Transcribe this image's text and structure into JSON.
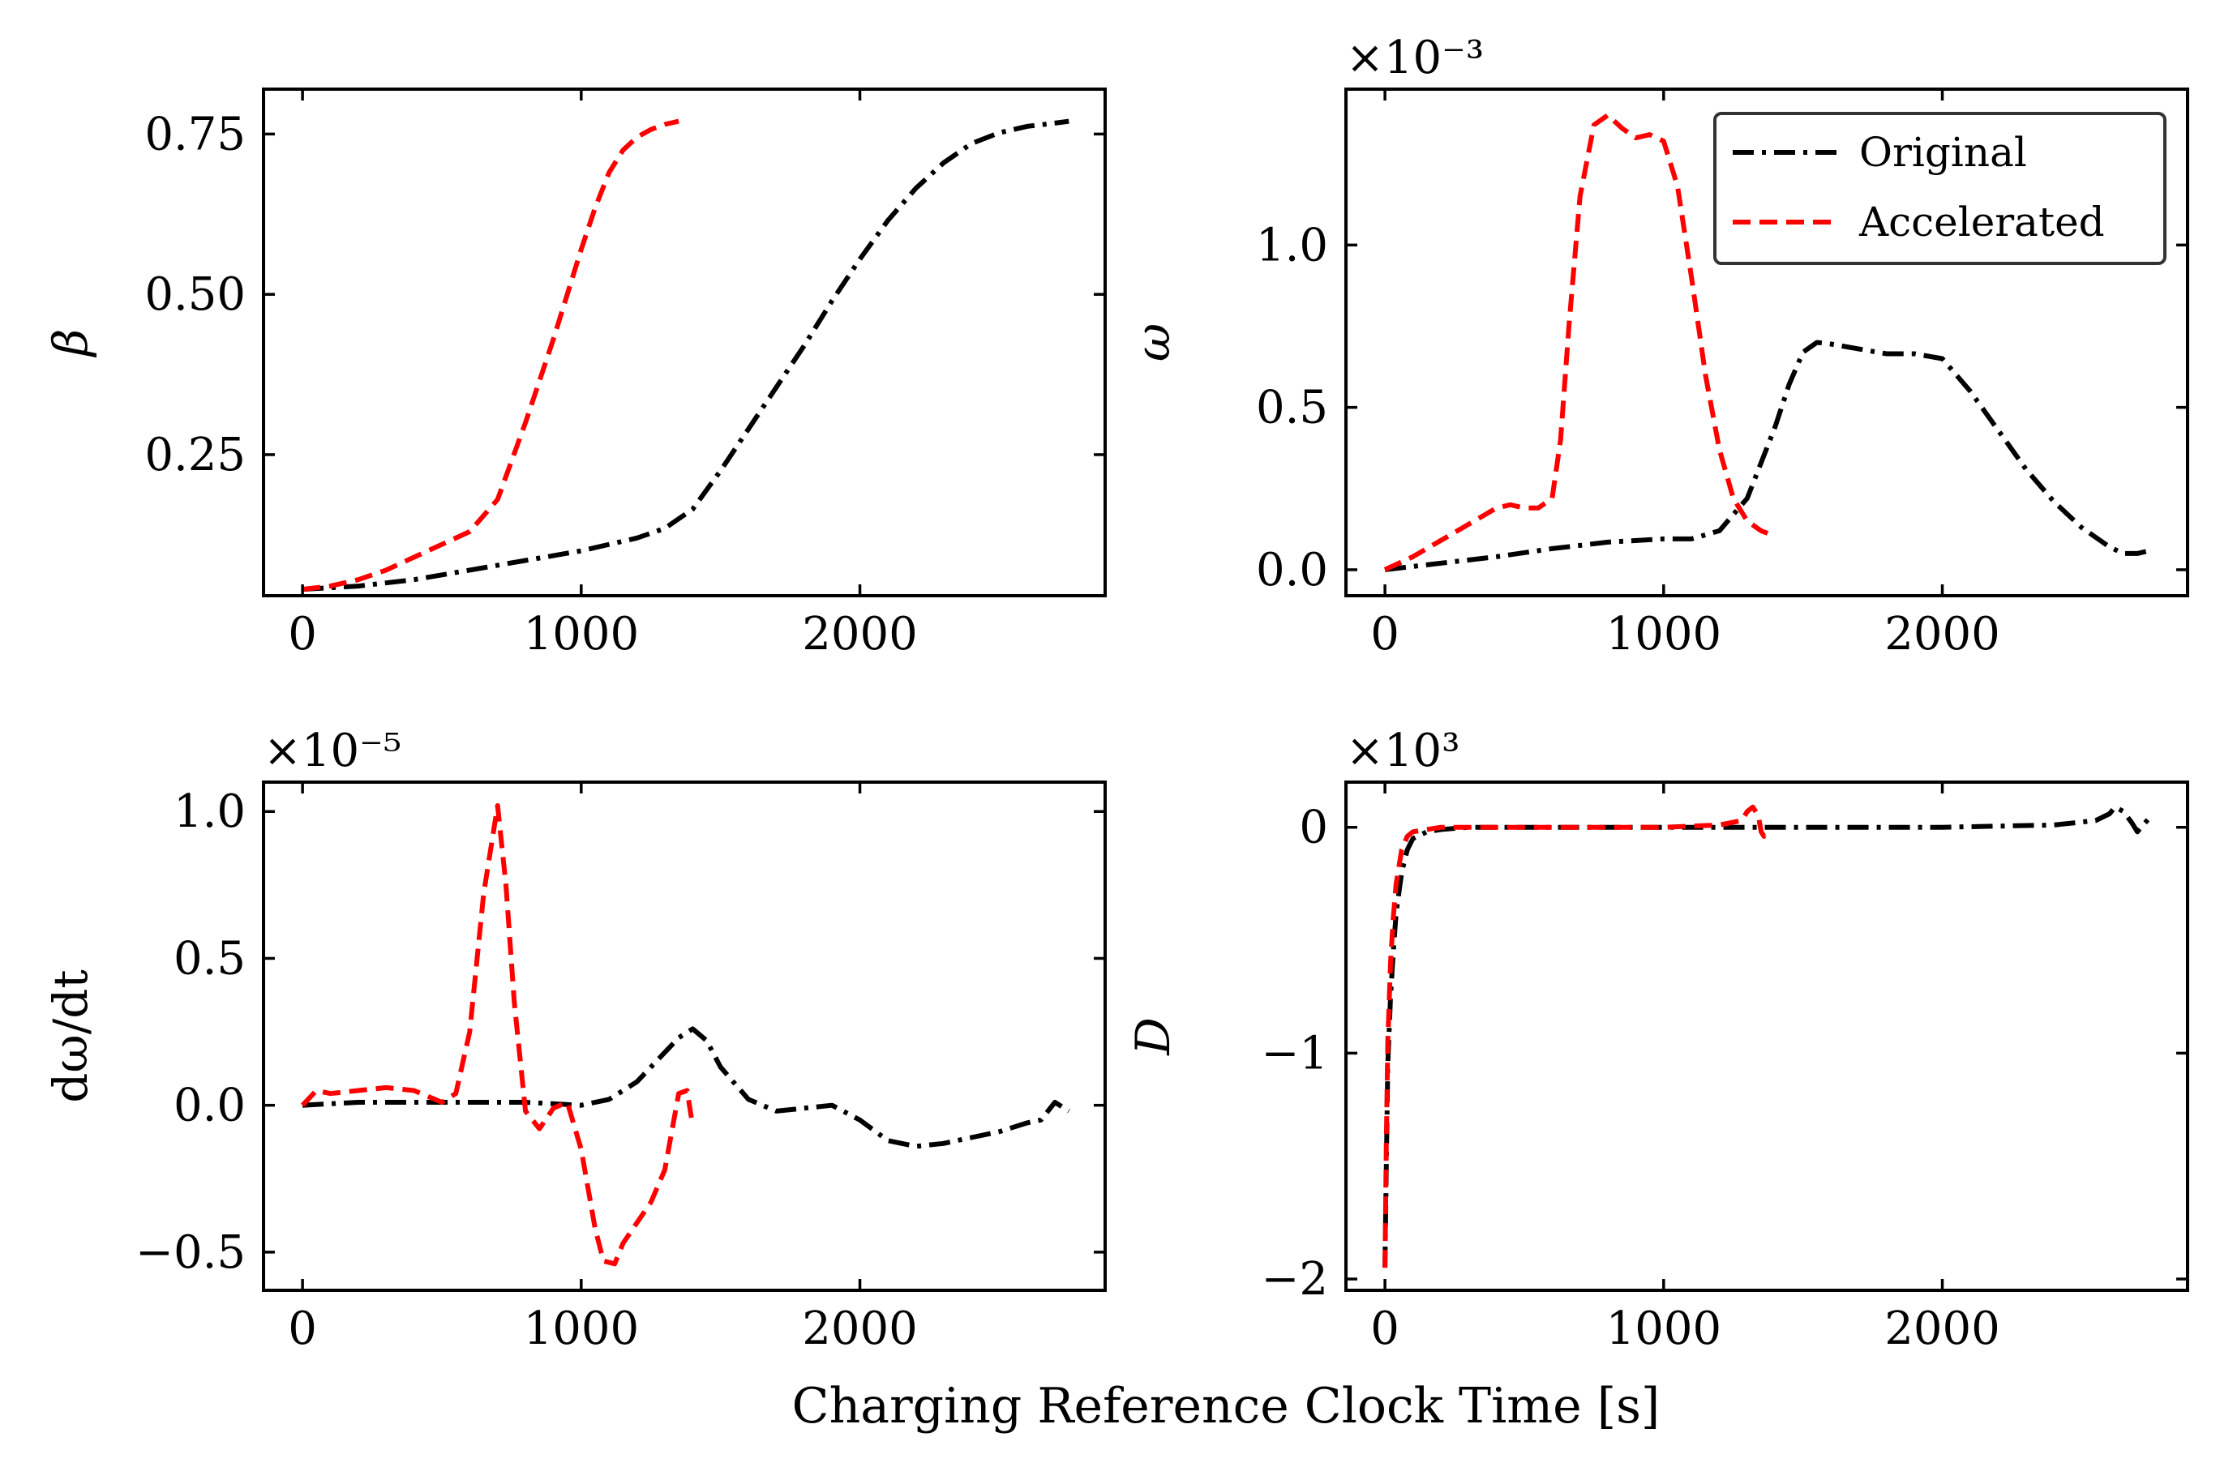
{
  "xlabel": "Charging Reference Clock Time [s]",
  "colors": {
    "original": "#000000",
    "accelerated": "#ff0000"
  },
  "legend": {
    "placement": "top-right of omega panel",
    "entries": [
      {
        "name": "Original",
        "color": "#000000",
        "style": "dashdot"
      },
      {
        "name": "Accelerated",
        "color": "#ff0000",
        "style": "dashed"
      }
    ]
  },
  "chart_data": [
    {
      "id": "beta",
      "type": "line",
      "ylabel": "β",
      "offset": "",
      "xlim": [
        -140,
        2880
      ],
      "ylim": [
        0.03,
        0.82
      ],
      "xticks": [
        {
          "v": 0,
          "t": "0"
        },
        {
          "v": 1000,
          "t": "1000"
        },
        {
          "v": 2000,
          "t": "2000"
        }
      ],
      "yticks": [
        {
          "v": 0.25,
          "t": "0.25"
        },
        {
          "v": 0.5,
          "t": "0.50"
        },
        {
          "v": 0.75,
          "t": "0.75"
        }
      ],
      "series": [
        {
          "name": "Original",
          "x": [
            0,
            200,
            400,
            600,
            800,
            1000,
            1200,
            1300,
            1400,
            1500,
            1600,
            1700,
            1800,
            1900,
            2000,
            2100,
            2200,
            2300,
            2400,
            2500,
            2600,
            2700,
            2750
          ],
          "y": [
            0.04,
            0.045,
            0.055,
            0.07,
            0.085,
            0.1,
            0.12,
            0.135,
            0.165,
            0.225,
            0.29,
            0.355,
            0.42,
            0.49,
            0.555,
            0.615,
            0.665,
            0.705,
            0.735,
            0.752,
            0.762,
            0.767,
            0.77
          ]
        },
        {
          "name": "Accelerated",
          "x": [
            0,
            100,
            200,
            300,
            400,
            500,
            600,
            700,
            800,
            900,
            1000,
            1050,
            1100,
            1150,
            1200,
            1250,
            1300,
            1350
          ],
          "y": [
            0.04,
            0.045,
            0.055,
            0.07,
            0.09,
            0.11,
            0.13,
            0.18,
            0.3,
            0.43,
            0.57,
            0.635,
            0.69,
            0.725,
            0.745,
            0.757,
            0.765,
            0.77
          ]
        }
      ]
    },
    {
      "id": "omega",
      "type": "line",
      "ylabel": "ω",
      "offset": "×10⁻³",
      "xlim": [
        -140,
        2880
      ],
      "ylim": [
        -0.08,
        1.48
      ],
      "xticks": [
        {
          "v": 0,
          "t": "0"
        },
        {
          "v": 1000,
          "t": "1000"
        },
        {
          "v": 2000,
          "t": "2000"
        }
      ],
      "yticks": [
        {
          "v": 0.0,
          "t": "0.0"
        },
        {
          "v": 0.5,
          "t": "0.5"
        },
        {
          "v": 1.0,
          "t": "1.0"
        }
      ],
      "series": [
        {
          "name": "Original",
          "x": [
            0,
            200,
            400,
            600,
            800,
            1000,
            1100,
            1200,
            1300,
            1400,
            1450,
            1500,
            1550,
            1600,
            1700,
            1800,
            1900,
            2000,
            2100,
            2200,
            2300,
            2400,
            2500,
            2600,
            2650,
            2700,
            2750
          ],
          "y": [
            0.0,
            0.02,
            0.04,
            0.065,
            0.085,
            0.095,
            0.095,
            0.12,
            0.22,
            0.44,
            0.57,
            0.67,
            0.7,
            0.695,
            0.68,
            0.665,
            0.665,
            0.65,
            0.55,
            0.43,
            0.31,
            0.21,
            0.13,
            0.07,
            0.05,
            0.05,
            0.06
          ]
        },
        {
          "name": "Accelerated",
          "x": [
            0,
            100,
            200,
            300,
            400,
            450,
            500,
            550,
            600,
            630,
            660,
            700,
            750,
            800,
            850,
            900,
            950,
            1000,
            1050,
            1100,
            1150,
            1200,
            1250,
            1300,
            1350,
            1380
          ],
          "y": [
            0.0,
            0.04,
            0.09,
            0.14,
            0.19,
            0.2,
            0.19,
            0.19,
            0.22,
            0.4,
            0.75,
            1.15,
            1.37,
            1.4,
            1.36,
            1.33,
            1.34,
            1.32,
            1.18,
            0.9,
            0.6,
            0.37,
            0.22,
            0.15,
            0.12,
            0.11
          ]
        }
      ]
    },
    {
      "id": "domega",
      "type": "line",
      "ylabel": "dω/dt",
      "offset": "×10⁻⁵",
      "xlim": [
        -140,
        2880
      ],
      "ylim": [
        -0.63,
        1.1
      ],
      "xticks": [
        {
          "v": 0,
          "t": "0"
        },
        {
          "v": 1000,
          "t": "1000"
        },
        {
          "v": 2000,
          "t": "2000"
        }
      ],
      "yticks": [
        {
          "v": -0.5,
          "t": "−0.5"
        },
        {
          "v": 0.0,
          "t": "0.0"
        },
        {
          "v": 0.5,
          "t": "0.5"
        },
        {
          "v": 1.0,
          "t": "1.0"
        }
      ],
      "series": [
        {
          "name": "Original",
          "x": [
            0,
            200,
            400,
            600,
            800,
            1000,
            1100,
            1200,
            1300,
            1350,
            1400,
            1450,
            1500,
            1600,
            1700,
            1800,
            1900,
            2000,
            2100,
            2200,
            2300,
            2400,
            2500,
            2600,
            2650,
            2700,
            2750
          ],
          "y": [
            0.0,
            0.01,
            0.01,
            0.01,
            0.01,
            0.0,
            0.02,
            0.08,
            0.18,
            0.23,
            0.26,
            0.22,
            0.13,
            0.02,
            -0.02,
            -0.01,
            0.0,
            -0.05,
            -0.12,
            -0.14,
            -0.13,
            -0.11,
            -0.09,
            -0.06,
            -0.05,
            0.01,
            -0.02
          ]
        },
        {
          "name": "Accelerated",
          "x": [
            0,
            50,
            100,
            200,
            300,
            400,
            500,
            550,
            600,
            650,
            700,
            730,
            760,
            800,
            850,
            900,
            950,
            1000,
            1050,
            1080,
            1120,
            1150,
            1200,
            1250,
            1300,
            1350,
            1380,
            1400
          ],
          "y": [
            0.0,
            0.05,
            0.04,
            0.05,
            0.06,
            0.05,
            0.01,
            0.04,
            0.25,
            0.72,
            1.02,
            0.75,
            0.35,
            -0.02,
            -0.08,
            -0.01,
            0.01,
            -0.15,
            -0.42,
            -0.53,
            -0.54,
            -0.47,
            -0.4,
            -0.33,
            -0.22,
            0.04,
            0.05,
            -0.07
          ]
        }
      ]
    },
    {
      "id": "D",
      "type": "line",
      "ylabel": "D",
      "offset": "×10³",
      "xlim": [
        -140,
        2880
      ],
      "ylim": [
        -2.05,
        0.2
      ],
      "xticks": [
        {
          "v": 0,
          "t": "0"
        },
        {
          "v": 1000,
          "t": "1000"
        },
        {
          "v": 2000,
          "t": "2000"
        }
      ],
      "yticks": [
        {
          "v": -2,
          "t": "−2"
        },
        {
          "v": -1,
          "t": "−1"
        },
        {
          "v": 0,
          "t": "0"
        }
      ],
      "series": [
        {
          "name": "Original",
          "x": [
            0,
            5,
            10,
            20,
            30,
            40,
            60,
            80,
            100,
            150,
            200,
            300,
            500,
            1000,
            1500,
            2000,
            2400,
            2550,
            2600,
            2620,
            2650,
            2680,
            2700,
            2720,
            2750
          ],
          "y": [
            -1.95,
            -1.5,
            -1.05,
            -0.75,
            -0.55,
            -0.38,
            -0.2,
            -0.1,
            -0.05,
            -0.02,
            -0.01,
            0.0,
            0.0,
            0.0,
            0.0,
            0.0,
            0.01,
            0.03,
            0.06,
            0.09,
            0.07,
            0.02,
            -0.02,
            0.01,
            0.05
          ]
        },
        {
          "name": "Accelerated",
          "x": [
            0,
            5,
            10,
            20,
            30,
            40,
            60,
            80,
            100,
            150,
            200,
            500,
            1000,
            1200,
            1280,
            1300,
            1320,
            1340,
            1350,
            1360,
            1370
          ],
          "y": [
            -1.95,
            -1.4,
            -0.95,
            -0.6,
            -0.4,
            -0.25,
            -0.1,
            -0.04,
            -0.02,
            -0.01,
            0.0,
            0.0,
            0.0,
            0.01,
            0.03,
            0.07,
            0.09,
            0.05,
            -0.02,
            -0.04,
            -0.01
          ]
        }
      ]
    }
  ]
}
